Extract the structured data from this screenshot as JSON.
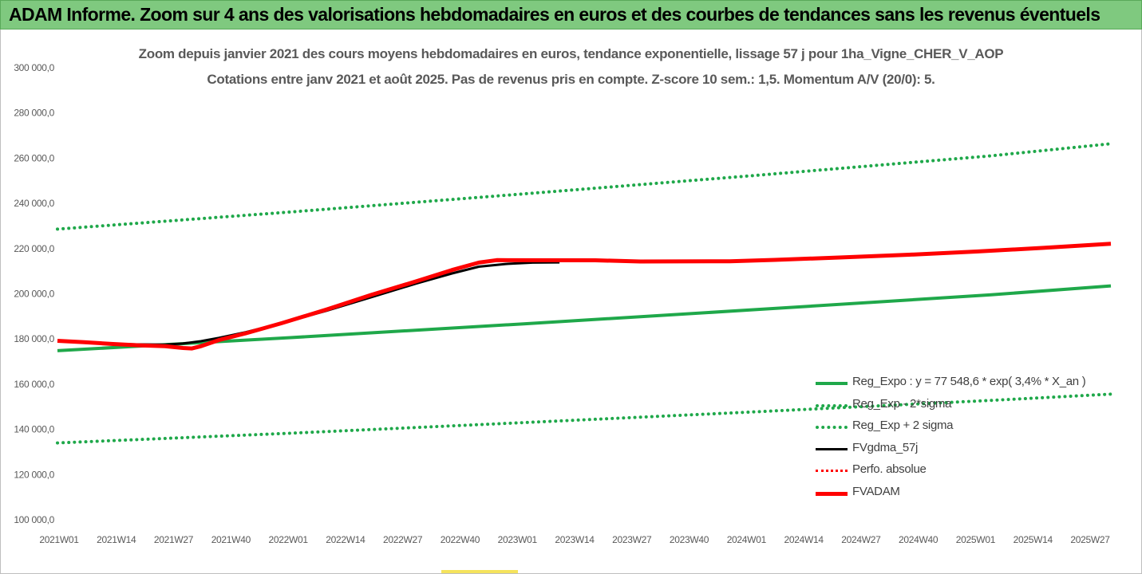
{
  "banner": {
    "title": "ADAM Informe. Zoom sur 4 ans des valorisations hebdomadaires en euros et des courbes de tendances sans les revenus éventuels"
  },
  "chart_data": {
    "type": "line",
    "title_line1": "Zoom depuis janvier 2021 des cours moyens hebdomadaires en euros, tendance exponentielle, lissage 57 j pour 1ha_Vigne_CHER_V_AOP",
    "title_line2": "Cotations entre janv 2021 et août 2025.  Pas de revenus pris en compte. Z-score 10 sem.: 1,5. Momentum A/V (20/0): 5.",
    "ylim": [
      100000,
      300000
    ],
    "y_ticks": [
      "100 000,0",
      "120 000,0",
      "140 000,0",
      "160 000,0",
      "180 000,0",
      "200 000,0",
      "220 000,0",
      "240 000,0",
      "260 000,0",
      "280 000,0",
      "300 000,0"
    ],
    "y_tick_values": [
      100000,
      120000,
      140000,
      160000,
      180000,
      200000,
      220000,
      240000,
      260000,
      280000,
      300000
    ],
    "x_ticks": [
      "2021W01",
      "2021W14",
      "2021W27",
      "2021W40",
      "2022W01",
      "2022W14",
      "2022W27",
      "2022W40",
      "2023W01",
      "2023W14",
      "2023W27",
      "2023W40",
      "2024W01",
      "2024W14",
      "2024W27",
      "2024W40",
      "2025W01",
      "2025W14",
      "2025W27"
    ],
    "x_start_week_index": 0,
    "x_end_week_index": 235,
    "grid": false,
    "legend_position": "bottom-right",
    "series": [
      {
        "name": "Reg_Expo : y = 77 548,6 * exp( 3,4% *  X_an )",
        "color": "#1fa84a",
        "style": "solid",
        "width": 4,
        "points": [
          [
            0,
            174800
          ],
          [
            52,
            180600
          ],
          [
            104,
            186700
          ],
          [
            156,
            193000
          ],
          [
            208,
            199500
          ],
          [
            235,
            203500
          ]
        ]
      },
      {
        "name": "Reg_Exp - 2*sigma",
        "color": "#1fa84a",
        "style": "dotted",
        "width": 4,
        "points": [
          [
            0,
            134000
          ],
          [
            52,
            138300
          ],
          [
            104,
            143000
          ],
          [
            156,
            147800
          ],
          [
            208,
            152800
          ],
          [
            235,
            155600
          ]
        ]
      },
      {
        "name": "Reg_Exp + 2 sigma",
        "color": "#1fa84a",
        "style": "dotted",
        "width": 4,
        "points": [
          [
            0,
            228600
          ],
          [
            52,
            236200
          ],
          [
            104,
            244200
          ],
          [
            156,
            252400
          ],
          [
            208,
            261000
          ],
          [
            235,
            266400
          ]
        ]
      },
      {
        "name": "FVgdma_57j",
        "color": "#000000",
        "style": "solid",
        "width": 3,
        "points": [
          [
            0,
            179000
          ],
          [
            6,
            178500
          ],
          [
            12,
            177800
          ],
          [
            18,
            177600
          ],
          [
            24,
            177500
          ],
          [
            28,
            178000
          ],
          [
            32,
            179000
          ],
          [
            36,
            180500
          ],
          [
            42,
            183000
          ],
          [
            50,
            187000
          ],
          [
            60,
            192500
          ],
          [
            70,
            198500
          ],
          [
            80,
            204500
          ],
          [
            88,
            209000
          ],
          [
            94,
            212000
          ],
          [
            100,
            213200
          ],
          [
            106,
            213800
          ],
          [
            112,
            213900
          ]
        ]
      },
      {
        "name": "Perfo. absolue",
        "color": "#ff0000",
        "style": "dotted",
        "width": 3,
        "points": []
      },
      {
        "name": "FVADAM",
        "color": "#ff0000",
        "style": "solid",
        "width": 5,
        "points": [
          [
            0,
            179200
          ],
          [
            6,
            178600
          ],
          [
            12,
            177800
          ],
          [
            18,
            177200
          ],
          [
            24,
            176800
          ],
          [
            28,
            176000
          ],
          [
            30,
            175800
          ],
          [
            32,
            176800
          ],
          [
            36,
            179500
          ],
          [
            42,
            182500
          ],
          [
            50,
            187000
          ],
          [
            60,
            193000
          ],
          [
            70,
            199500
          ],
          [
            80,
            205500
          ],
          [
            88,
            210500
          ],
          [
            94,
            213800
          ],
          [
            98,
            214900
          ],
          [
            120,
            214800
          ],
          [
            130,
            214300
          ],
          [
            150,
            214400
          ],
          [
            160,
            215000
          ],
          [
            175,
            216100
          ],
          [
            190,
            217300
          ],
          [
            205,
            218700
          ],
          [
            220,
            220300
          ],
          [
            235,
            222100
          ]
        ]
      }
    ]
  }
}
